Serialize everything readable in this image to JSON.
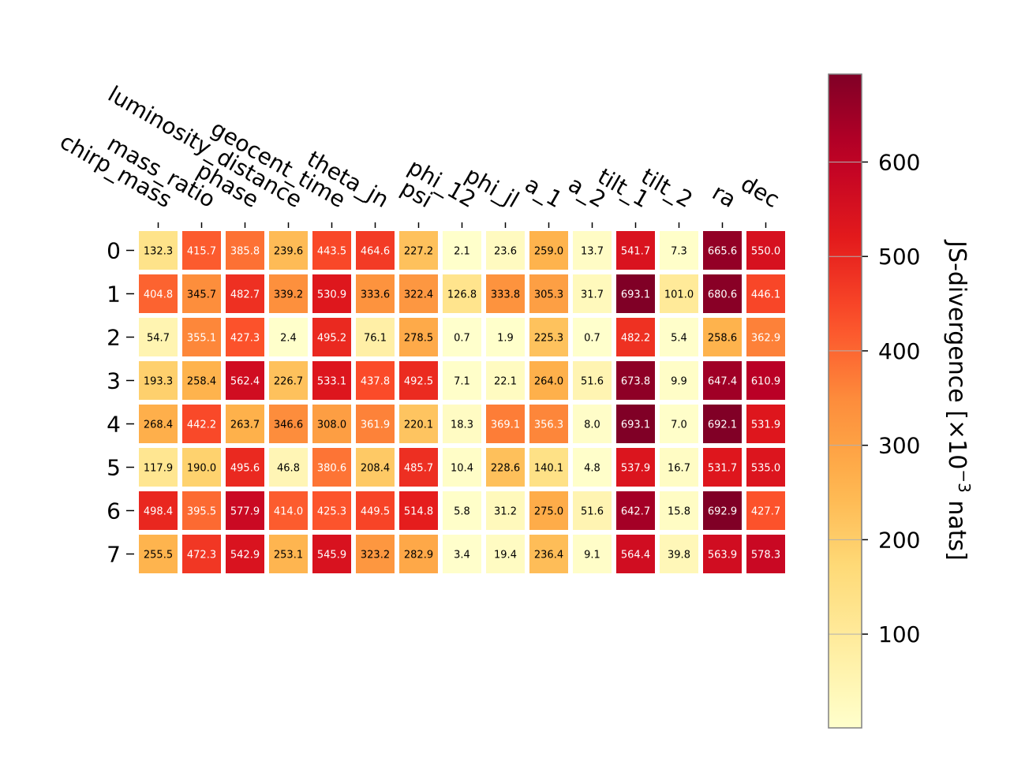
{
  "chart_data": {
    "type": "heatmap",
    "columns": [
      "chirp_mass",
      "mass_ratio",
      "phase",
      "luminosity_distance",
      "geocent_time",
      "theta_jn",
      "psi",
      "phi_12",
      "phi_jl",
      "a_1",
      "a_2",
      "tilt_1",
      "tilt_2",
      "ra",
      "dec"
    ],
    "rows": [
      "0",
      "1",
      "2",
      "3",
      "4",
      "5",
      "6",
      "7"
    ],
    "values": [
      [
        132.3,
        415.7,
        385.8,
        239.6,
        443.5,
        464.6,
        227.2,
        2.1,
        23.6,
        259.0,
        13.7,
        541.7,
        7.3,
        665.6,
        550.0
      ],
      [
        404.8,
        345.7,
        482.7,
        339.2,
        530.9,
        333.6,
        322.4,
        126.8,
        333.8,
        305.3,
        31.7,
        693.1,
        101.0,
        680.6,
        446.1
      ],
      [
        54.7,
        355.1,
        427.3,
        2.4,
        495.2,
        76.1,
        278.5,
        0.7,
        1.9,
        225.3,
        0.7,
        482.2,
        5.4,
        258.6,
        362.9
      ],
      [
        193.3,
        258.4,
        562.4,
        226.7,
        533.1,
        437.8,
        492.5,
        7.1,
        22.1,
        264.0,
        51.6,
        673.8,
        9.9,
        647.4,
        610.9
      ],
      [
        268.4,
        442.2,
        263.7,
        346.6,
        308.0,
        361.9,
        220.1,
        18.3,
        369.1,
        356.3,
        8.0,
        693.1,
        7.0,
        692.1,
        531.9
      ],
      [
        117.9,
        190.0,
        495.6,
        46.8,
        380.6,
        208.4,
        485.7,
        10.4,
        228.6,
        140.1,
        4.8,
        537.9,
        16.7,
        531.7,
        535.0
      ],
      [
        498.4,
        395.5,
        577.9,
        414.0,
        425.3,
        449.5,
        514.8,
        5.8,
        31.2,
        275.0,
        51.6,
        642.7,
        15.8,
        692.9,
        427.7
      ],
      [
        255.5,
        472.3,
        542.9,
        253.1,
        545.9,
        323.2,
        282.9,
        3.4,
        19.4,
        236.4,
        9.1,
        564.4,
        39.8,
        563.9,
        578.3
      ]
    ],
    "colorbar": {
      "label_main": "JS-divergence [×10",
      "label_exp": "−3",
      "label_tail": " nats]",
      "ticks": [
        "100",
        "200",
        "300",
        "400",
        "500",
        "600"
      ],
      "range": [
        0.7,
        693.1
      ],
      "colormap": "YlOrRd"
    }
  }
}
